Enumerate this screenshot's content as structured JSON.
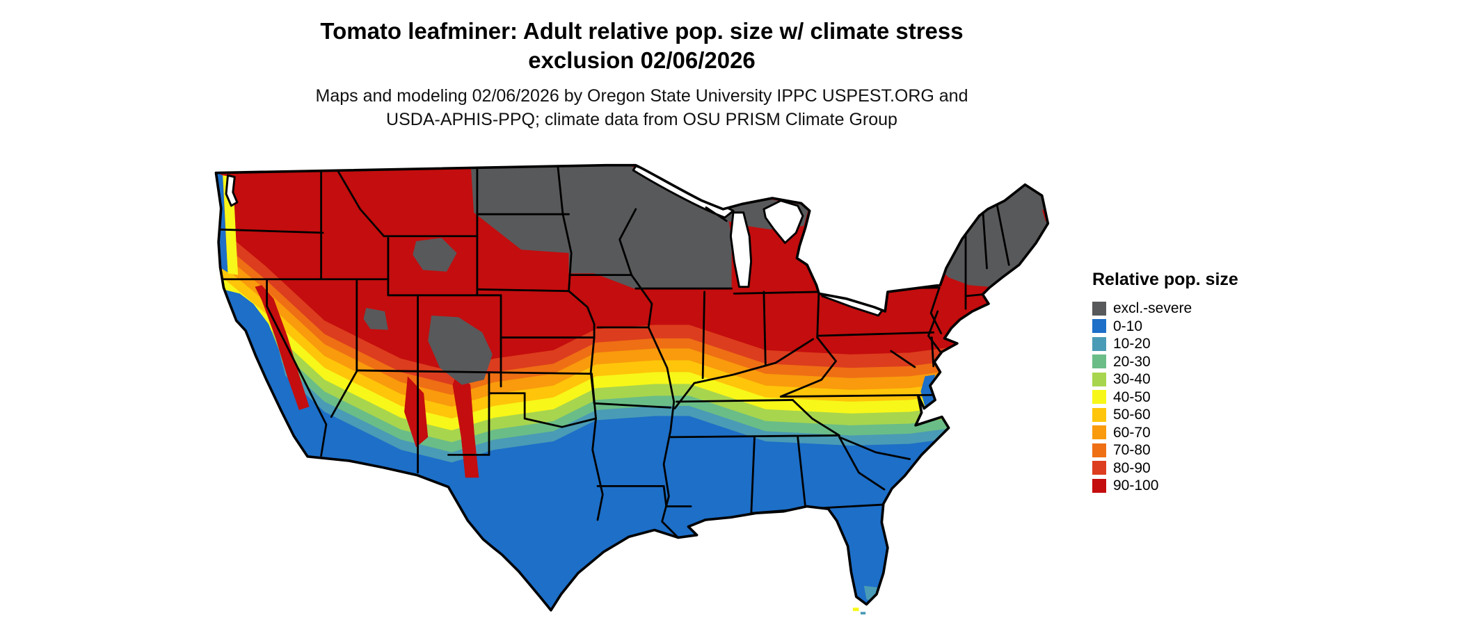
{
  "figure": {
    "title_line1": "Tomato leafminer: Adult relative pop. size w/ climate stress",
    "title_line2": "exclusion 02/06/2026",
    "credit_line1": "Maps and modeling 02/06/2026 by Oregon State University IPPC USPEST.ORG and",
    "credit_line2": "USDA-APHIS-PPQ; climate data from OSU PRISM Climate Group"
  },
  "legend": {
    "title": "Relative pop. size",
    "items": [
      {
        "key": "excl",
        "label": "excl.-severe",
        "color": "#58595B"
      },
      {
        "key": "0-10",
        "label": "0-10",
        "color": "#1D6FC8"
      },
      {
        "key": "10-20",
        "label": "10-20",
        "color": "#4A9BB5"
      },
      {
        "key": "20-30",
        "label": "20-30",
        "color": "#6ABD87"
      },
      {
        "key": "30-40",
        "label": "30-40",
        "color": "#A8D54E"
      },
      {
        "key": "40-50",
        "label": "40-50",
        "color": "#F7F719"
      },
      {
        "key": "50-60",
        "label": "50-60",
        "color": "#FFC50A"
      },
      {
        "key": "60-70",
        "label": "60-70",
        "color": "#F99B0C"
      },
      {
        "key": "70-80",
        "label": "70-80",
        "color": "#EF6F14"
      },
      {
        "key": "80-90",
        "label": "80-90",
        "color": "#DC3D1E"
      },
      {
        "key": "90-100",
        "label": "90-100",
        "color": "#C40D0E"
      }
    ]
  },
  "map": {
    "region": "Contiguous United States",
    "water_color": "#FFFFFF",
    "border_color": "#000000"
  }
}
